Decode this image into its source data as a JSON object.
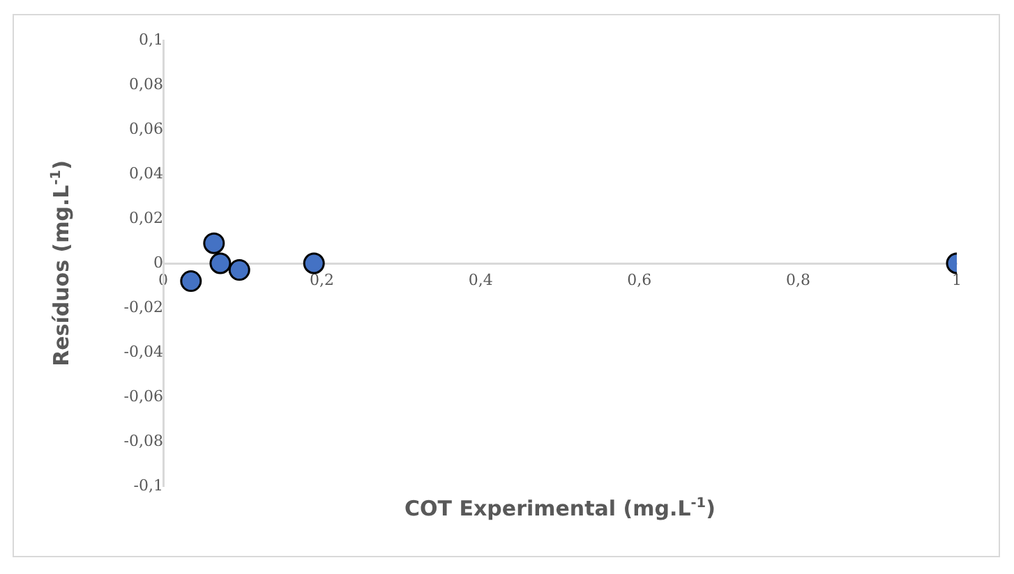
{
  "chart_data": {
    "type": "scatter",
    "xlabel": "COT Experimental (mg.L$^{-1}$)",
    "ylabel": "Resíduos (mg.L$^{-1}$)",
    "x": [
      0.035,
      0.064,
      0.072,
      0.096,
      0.19,
      1
    ],
    "series": [
      {
        "color": "#4472c4",
        "values": [
          -0.008,
          0.009,
          0,
          -0.003,
          0,
          0
        ]
      }
    ],
    "xlim": [
      0,
      1
    ],
    "xticks": [
      0,
      {
        "value": 0.2,
        "label": "0,2"
      },
      {
        "value": 0.4,
        "label": "0,4"
      },
      {
        "value": 0.6,
        "label": "0,6"
      },
      {
        "value": 0.8,
        "label": "0,8"
      },
      1
    ],
    "ylim": [
      -0.1,
      0.1
    ],
    "yticks": [
      {
        "value": -0.1,
        "label": "-0,1"
      },
      {
        "value": -0.08,
        "label": "-0,08"
      },
      {
        "value": -0.06,
        "label": "-0,06"
      },
      {
        "value": -0.04,
        "label": "-0,04"
      },
      {
        "value": -0.02,
        "label": "-0,02"
      },
      0,
      {
        "value": 0.02,
        "label": "0,02"
      },
      {
        "value": 0.04,
        "label": "0,04"
      },
      {
        "value": 0.06,
        "label": "0,06"
      },
      {
        "value": 0.08,
        "label": "0,08"
      },
      {
        "value": 0.1,
        "label": "0,1"
      }
    ],
    "grid": false,
    "legend": false,
    "marker": "circle"
  }
}
